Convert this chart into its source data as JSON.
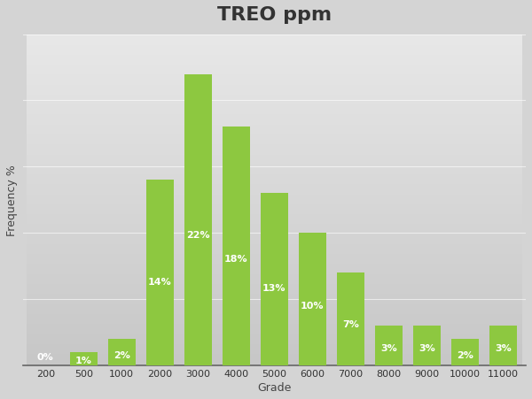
{
  "title": "TREO ppm",
  "xlabel": "Grade",
  "ylabel": "Frequency %",
  "categories": [
    "200",
    "500",
    "1000",
    "2000",
    "3000",
    "4000",
    "5000",
    "6000",
    "7000",
    "8000",
    "9000",
    "10000",
    "11000"
  ],
  "values": [
    0,
    1,
    2,
    14,
    22,
    18,
    13,
    10,
    7,
    3,
    3,
    2,
    3
  ],
  "bar_color": "#8dc840",
  "label_color": "#ffffff",
  "bg_top": "#e8e8e8",
  "bg_bottom": "#c8c8c8",
  "ylim": [
    0,
    25
  ],
  "title_fontsize": 16,
  "axis_label_fontsize": 9,
  "bar_label_fontsize": 8,
  "tick_label_fontsize": 8
}
